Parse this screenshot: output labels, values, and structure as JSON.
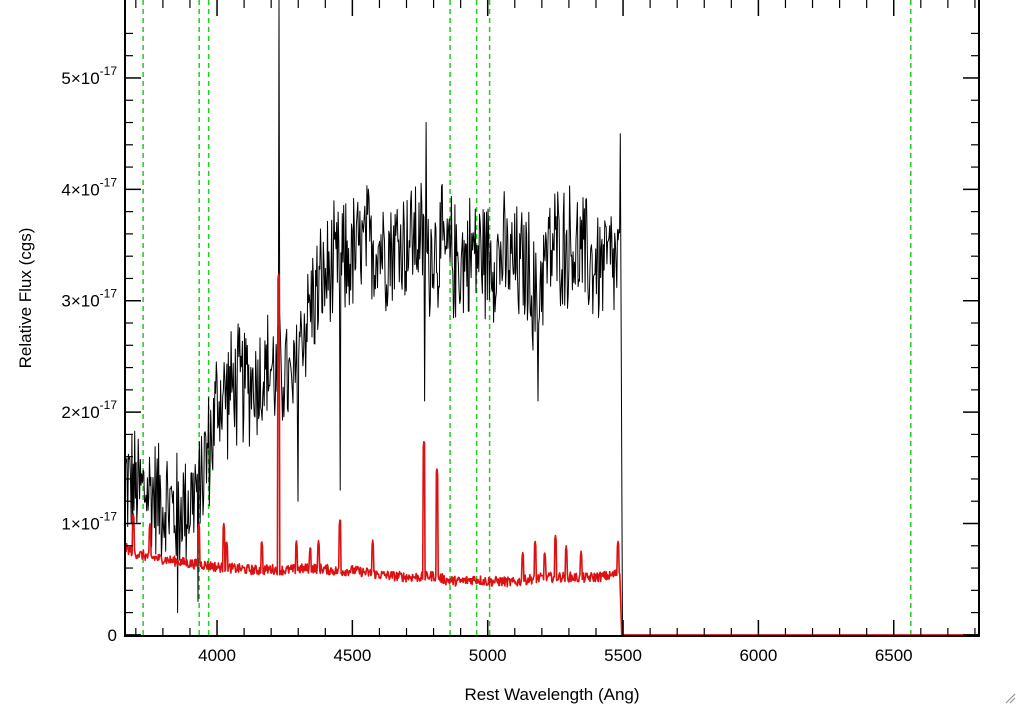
{
  "chart_data": {
    "type": "line",
    "title": "",
    "xlabel": "Rest Wavelength (Ang)",
    "ylabel": "Relative Flux (cgs)",
    "xlim": [
      3660,
      6815
    ],
    "ylim": [
      -1e-19,
      5.7e-17
    ],
    "grid": false,
    "x_ticks": [
      {
        "value": 4000,
        "label": "4000"
      },
      {
        "value": 4500,
        "label": "4500"
      },
      {
        "value": 5000,
        "label": "5000"
      },
      {
        "value": 5500,
        "label": "5500"
      },
      {
        "value": 6000,
        "label": "6000"
      },
      {
        "value": 6500,
        "label": "6500"
      }
    ],
    "y_ticks": [
      {
        "value": 0,
        "mantissa": "0",
        "exponent": ""
      },
      {
        "value": 1e-17,
        "mantissa": "1×10",
        "exponent": "-17"
      },
      {
        "value": 2e-17,
        "mantissa": "2×10",
        "exponent": "-17"
      },
      {
        "value": 3e-17,
        "mantissa": "3×10",
        "exponent": "-17"
      },
      {
        "value": 4e-17,
        "mantissa": "4×10",
        "exponent": "-17"
      },
      {
        "value": 5e-17,
        "mantissa": "5×10",
        "exponent": "-17"
      }
    ],
    "vertical_lines": {
      "color": "#22cc22",
      "style": "dashed",
      "x": [
        3727,
        3934,
        3969,
        4861,
        4959,
        5007,
        6563
      ]
    },
    "series": [
      {
        "color": "#000000",
        "x": [
          3662,
          3700,
          3750,
          3800,
          3850,
          3900,
          3950,
          3980,
          4000,
          4050,
          4100,
          4150,
          4200,
          4220,
          4250,
          4280,
          4300,
          4350,
          4400,
          4450,
          4500,
          4550,
          4600,
          4650,
          4700,
          4750,
          4770,
          4800,
          4850,
          4900,
          4950,
          5000,
          5050,
          5100,
          5150,
          5180,
          5200,
          5250,
          5300,
          5350,
          5400,
          5450,
          5490
        ],
        "y": [
          1.4e-17,
          1.3e-17,
          1.3e-17,
          1.2e-17,
          1.1e-17,
          1.2e-17,
          1.5e-17,
          1.75e-17,
          2.1e-17,
          2.2e-17,
          2.25e-17,
          2.3e-17,
          2.4e-17,
          2.3e-17,
          2.4e-17,
          2.1e-17,
          2.6e-17,
          3e-17,
          3.2e-17,
          3.3e-17,
          3.4e-17,
          3.5e-17,
          3.5e-17,
          3.5e-17,
          3.55e-17,
          3.6e-17,
          3.3e-17,
          3.5e-17,
          3.4e-17,
          3.35e-17,
          3.45e-17,
          3.4e-17,
          3.4e-17,
          3.3e-17,
          3.3e-17,
          2.9e-17,
          3.3e-17,
          3.5e-17,
          3.5e-17,
          3.4e-17,
          3.3e-17,
          3.35e-17,
          3.3e-17
        ],
        "drop_to_zero_at": 5498,
        "features": [
          {
            "x": 4228,
            "y": 5.7e-17
          },
          {
            "x": 4300,
            "y": 1.2e-17
          },
          {
            "x": 4767,
            "y": 2.1e-17
          },
          {
            "x": 4772,
            "y": 4.6e-17
          },
          {
            "x": 4455,
            "y": 1.3e-17
          },
          {
            "x": 3855,
            "y": 2e-18
          },
          {
            "x": 3930,
            "y": 3e-18
          },
          {
            "x": 5185,
            "y": 2.1e-17
          },
          {
            "x": 5490,
            "y": 4.5e-17
          }
        ]
      },
      {
        "color": "#dd1111",
        "x": [
          3662,
          3700,
          3750,
          3800,
          3850,
          3900,
          3950,
          4000,
          4050,
          4100,
          4150,
          4200,
          4250,
          4300,
          4350,
          4400,
          4450,
          4500,
          4550,
          4600,
          4650,
          4700,
          4750,
          4800,
          4850,
          4900,
          4950,
          5000,
          5050,
          5100,
          5150,
          5200,
          5250,
          5300,
          5350,
          5400,
          5450,
          5490
        ],
        "y": [
          7.8e-18,
          7.3e-18,
          7e-18,
          6.8e-18,
          6.6e-18,
          6.4e-18,
          6.3e-18,
          6.1e-18,
          6e-18,
          5.9e-18,
          5.8e-18,
          5.9e-18,
          5.8e-18,
          5.9e-18,
          6e-18,
          5.9e-18,
          5.7e-18,
          5.8e-18,
          5.6e-18,
          5.4e-18,
          5.3e-18,
          5.2e-18,
          5.2e-18,
          5.3e-18,
          4.9e-18,
          4.8e-18,
          5e-18,
          4.8e-18,
          4.8e-18,
          4.7e-18,
          5e-18,
          5.1e-18,
          5.2e-18,
          5.2e-18,
          5.1e-18,
          5.2e-18,
          5.3e-18,
          5.6e-18
        ],
        "drop_to_zero_at": 5495,
        "spikes": [
          {
            "x": 3690,
            "y": 1.1e-17
          },
          {
            "x": 3752,
            "y": 1e-17
          },
          {
            "x": 3933,
            "y": 1e-17
          },
          {
            "x": 4025,
            "y": 1e-17
          },
          {
            "x": 4035,
            "y": 8.5e-18
          },
          {
            "x": 4165,
            "y": 8.5e-18
          },
          {
            "x": 4228,
            "y": 3.25e-17
          },
          {
            "x": 4293,
            "y": 8.5e-18
          },
          {
            "x": 4345,
            "y": 8e-18
          },
          {
            "x": 4375,
            "y": 8.5e-18
          },
          {
            "x": 4455,
            "y": 1.05e-17
          },
          {
            "x": 4575,
            "y": 8.5e-18
          },
          {
            "x": 4765,
            "y": 1.75e-17
          },
          {
            "x": 4812,
            "y": 1.5e-17
          },
          {
            "x": 5130,
            "y": 7.5e-18
          },
          {
            "x": 5175,
            "y": 8.5e-18
          },
          {
            "x": 5210,
            "y": 7.5e-18
          },
          {
            "x": 5250,
            "y": 9e-18
          },
          {
            "x": 5290,
            "y": 8e-18
          },
          {
            "x": 5345,
            "y": 7.5e-18
          },
          {
            "x": 5482,
            "y": 8.5e-18
          }
        ]
      }
    ]
  }
}
